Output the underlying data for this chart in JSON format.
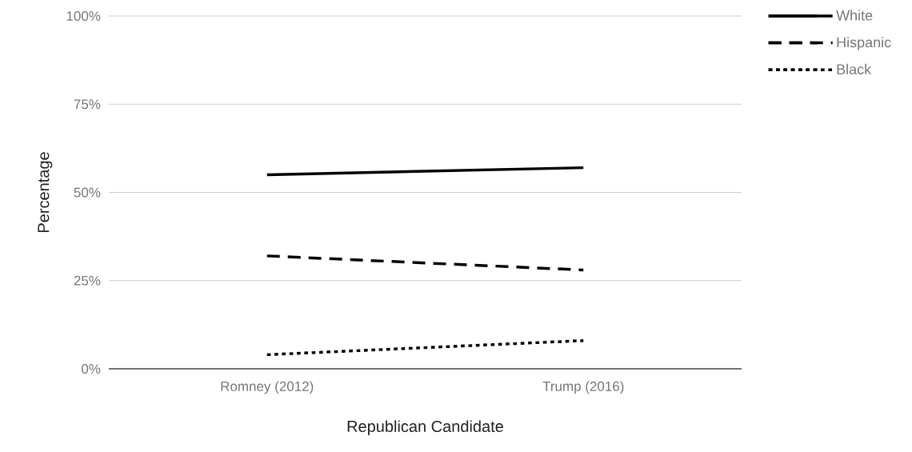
{
  "chart_data": {
    "type": "line",
    "xlabel": "Republican Candidate",
    "ylabel": "Percentage",
    "categories": [
      "Romney (2012)",
      "Trump (2016)"
    ],
    "series": [
      {
        "name": "White",
        "color": "#000000",
        "line_style": "solid",
        "values": [
          55,
          57
        ]
      },
      {
        "name": "Hispanic",
        "color": "#000000",
        "line_style": "dashed",
        "values": [
          32,
          28
        ]
      },
      {
        "name": "Black",
        "color": "#000000",
        "line_style": "dotted",
        "values": [
          4,
          8
        ]
      }
    ],
    "ylim": [
      0,
      100
    ],
    "yticks": [
      {
        "value": 0,
        "label": "0%"
      },
      {
        "value": 25,
        "label": "25%"
      },
      {
        "value": 50,
        "label": "50%"
      },
      {
        "value": 75,
        "label": "75%"
      },
      {
        "value": 100,
        "label": "100%"
      }
    ],
    "grid": "y",
    "legend": "top right"
  }
}
